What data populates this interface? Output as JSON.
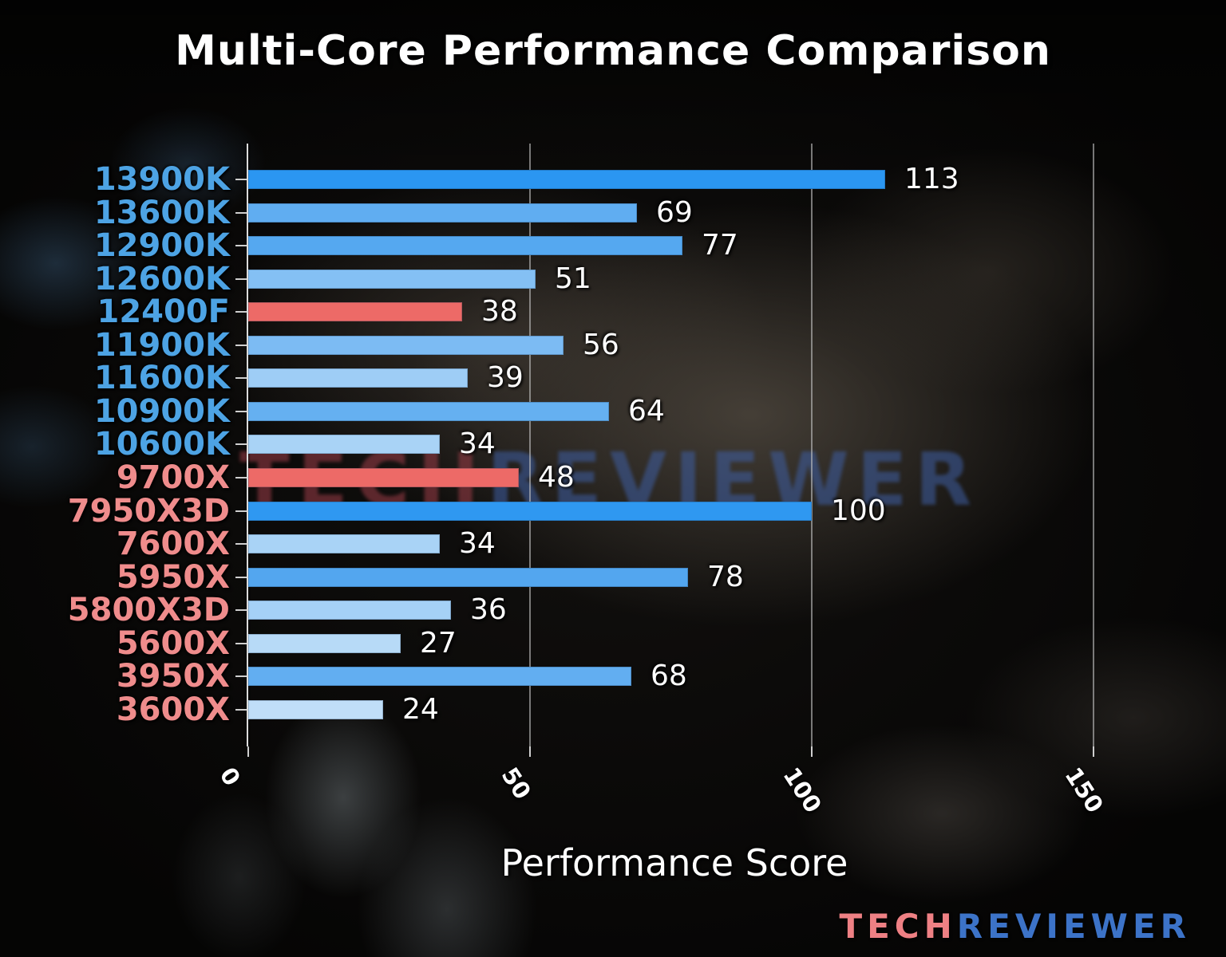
{
  "chart_data": {
    "type": "bar",
    "orientation": "horizontal",
    "title": "Multi-Core Performance Comparison",
    "xlabel": "Performance Score",
    "xlim": [
      0,
      150
    ],
    "x_ticks": [
      0,
      50,
      100,
      150
    ],
    "grid": "vertical gridlines at x ticks, legend none",
    "categories": [
      "13900K",
      "13600K",
      "12900K",
      "12600K",
      "12400F",
      "11900K",
      "11600K",
      "10900K",
      "10600K",
      "9700X",
      "7950X3D",
      "7600X",
      "5950X",
      "5800X3D",
      "5600X",
      "3950X",
      "3600X"
    ],
    "values": [
      113,
      69,
      77,
      51,
      38,
      56,
      39,
      64,
      34,
      48,
      100,
      34,
      78,
      36,
      27,
      68,
      24
    ],
    "bars": [
      {
        "label": "13900K",
        "value": 113,
        "bar_color": "#2b96f1",
        "vendor": "intel"
      },
      {
        "label": "13600K",
        "value": 69,
        "bar_color": "#60adf1",
        "vendor": "intel"
      },
      {
        "label": "12900K",
        "value": 77,
        "bar_color": "#55a8f0",
        "vendor": "intel"
      },
      {
        "label": "12600K",
        "value": 51,
        "bar_color": "#84c0f4",
        "vendor": "intel"
      },
      {
        "label": "12400F",
        "value": 38,
        "bar_color": "#ed6a67",
        "vendor": "intel"
      },
      {
        "label": "11900K",
        "value": 56,
        "bar_color": "#7cbbf3",
        "vendor": "intel"
      },
      {
        "label": "11600K",
        "value": 39,
        "bar_color": "#9ecdf6",
        "vendor": "intel"
      },
      {
        "label": "10900K",
        "value": 64,
        "bar_color": "#65b0f1",
        "vendor": "intel"
      },
      {
        "label": "10600K",
        "value": 34,
        "bar_color": "#a9d3f6",
        "vendor": "intel"
      },
      {
        "label": "9700X",
        "value": 48,
        "bar_color": "#ed6a67",
        "vendor": "amd"
      },
      {
        "label": "7950X3D",
        "value": 100,
        "bar_color": "#2f98f1",
        "vendor": "amd"
      },
      {
        "label": "7600X",
        "value": 34,
        "bar_color": "#a9d3f6",
        "vendor": "amd"
      },
      {
        "label": "5950X",
        "value": 78,
        "bar_color": "#53a6ef",
        "vendor": "amd"
      },
      {
        "label": "5800X3D",
        "value": 36,
        "bar_color": "#a5d1f6",
        "vendor": "amd"
      },
      {
        "label": "5600X",
        "value": 27,
        "bar_color": "#b7daf7",
        "vendor": "amd"
      },
      {
        "label": "3950X",
        "value": 68,
        "bar_color": "#62aef1",
        "vendor": "amd"
      },
      {
        "label": "3600X",
        "value": 24,
        "bar_color": "#c0def8",
        "vendor": "amd"
      }
    ],
    "highlight_color": "#ed6a67",
    "value_label_color": "#ffffff",
    "tick_label_color": "#ffffff"
  },
  "label_colors": {
    "intel": "#4da3e4",
    "amd": "#ef8c8c"
  },
  "watermark": {
    "tech": "TECH",
    "reviewer": "REVIEWER",
    "tech_color": "rgba(158,62,72,0.55)",
    "reviewer_color": "rgba(62,94,164,0.55)"
  },
  "logo": {
    "tech": "TECH",
    "reviewer": "REVIEWER",
    "tech_color": "#ee8084",
    "reviewer_color": "#3c73c8"
  }
}
